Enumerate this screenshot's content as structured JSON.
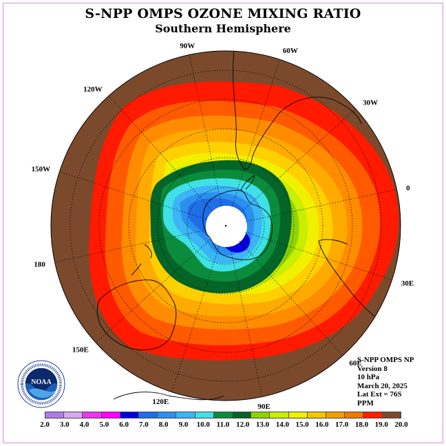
{
  "title": "S-NPP OMPS OZONE MIXING RATIO",
  "subtitle": "Southern Hemisphere",
  "longitude_labels": [
    {
      "text": "90W",
      "lon": -90
    },
    {
      "text": "60W",
      "lon": -60
    },
    {
      "text": "30W",
      "lon": -30
    },
    {
      "text": "0",
      "lon": 0
    },
    {
      "text": "30E",
      "lon": 30
    },
    {
      "text": "60E",
      "lon": 60
    },
    {
      "text": "90E",
      "lon": 90
    },
    {
      "text": "120E",
      "lon": 120
    },
    {
      "text": "150E",
      "lon": 150
    },
    {
      "text": "180",
      "lon": 180
    },
    {
      "text": "150W",
      "lon": -150
    },
    {
      "text": "120W",
      "lon": -120
    }
  ],
  "info": {
    "line1": "S-NPP OMPS NP",
    "line2": "Version 8",
    "line3": "10 hPa",
    "line4": "March 20, 2025",
    "line5": "Lat Ext = 76S",
    "line6": "PPM"
  },
  "logo_text": "NOAA",
  "colorbar": {
    "ticks": [
      "2.0",
      "3.0",
      "4.0",
      "5.0",
      "6.0",
      "7.0",
      "8.0",
      "9.0",
      "10.0",
      "11.0",
      "12.0",
      "13.0",
      "14.0",
      "15.0",
      "16.0",
      "17.0",
      "18.0",
      "19.0",
      "20.0"
    ],
    "colors": [
      "#b07be8",
      "#d8a8f0",
      "#ee33ee",
      "#ff00ff",
      "#0000dd",
      "#1e6ee6",
      "#2a90f0",
      "#3cb4f5",
      "#40e0e8",
      "#0a8c3c",
      "#056428",
      "#8fd400",
      "#c8ee00",
      "#f0f000",
      "#f0c800",
      "#f0a000",
      "#f07800",
      "#ff2000",
      "#7b4a2d"
    ]
  },
  "contour_colors": {
    "brown": "#7b4a2d",
    "red": "#ff1a00",
    "orange_red": "#ff5a00",
    "orange": "#ff8c00",
    "amber": "#ffaa00",
    "gold": "#ffd000",
    "yellow": "#f0f000",
    "yellow_green": "#c8ee00",
    "lime": "#8fd400",
    "dark_green": "#056428",
    "green": "#0a8c3c",
    "aqua": "#40e0e8",
    "sky": "#3cb4f5",
    "blue": "#2a90f0",
    "deep_blue": "#1e6ee6",
    "navy": "#0000dd"
  }
}
